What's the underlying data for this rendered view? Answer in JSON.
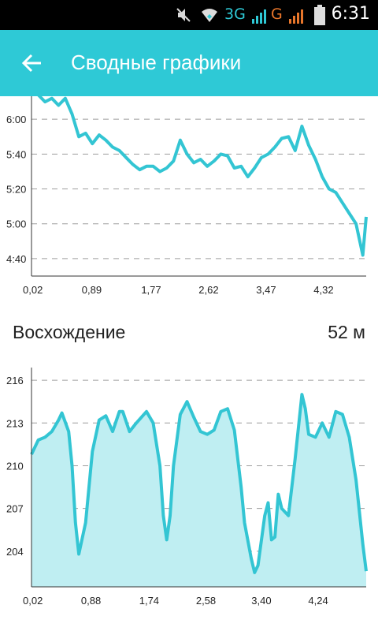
{
  "status_bar": {
    "time": "6:31",
    "network_1": "3G",
    "network_2": "G",
    "icons": [
      "mute-icon",
      "wifi-icon",
      "signal-icon",
      "battery-icon"
    ]
  },
  "app_bar": {
    "title": "Сводные графики",
    "back_icon": "arrow-left-icon"
  },
  "climb": {
    "label": "Восхождение",
    "value": "52 м"
  },
  "colors": {
    "accent": "#2ec9d6",
    "line": "#33c5d3",
    "fill": "#bfeef2"
  },
  "chart_data": [
    {
      "type": "line",
      "title": "",
      "xlabel": "",
      "ylabel": "",
      "x_ticks": [
        "0,02",
        "0,89",
        "1,77",
        "2,62",
        "3,47",
        "4,32"
      ],
      "y_ticks": [
        "6:00",
        "5:40",
        "5:20",
        "5:00",
        "4:40"
      ],
      "ylim_seconds": [
        270,
        380
      ],
      "xlim": [
        0.0,
        4.95
      ],
      "grid": "horizontal dashed",
      "series": [
        {
          "x": [
            0.0,
            0.1,
            0.2,
            0.3,
            0.4,
            0.5,
            0.6,
            0.7,
            0.8,
            0.9,
            1.0,
            1.1,
            1.2,
            1.3,
            1.4,
            1.5,
            1.6,
            1.7,
            1.8,
            1.9,
            2.0,
            2.1,
            2.2,
            2.3,
            2.4,
            2.5,
            2.6,
            2.7,
            2.8,
            2.9,
            3.0,
            3.1,
            3.2,
            3.3,
            3.4,
            3.5,
            3.6,
            3.7,
            3.8,
            3.9,
            4.0,
            4.1,
            4.2,
            4.3,
            4.4,
            4.5,
            4.6,
            4.7,
            4.8,
            4.9,
            4.95
          ],
          "y": [
            378,
            374,
            370,
            372,
            368,
            372,
            363,
            350,
            352,
            346,
            351,
            348,
            344,
            342,
            338,
            334,
            331,
            333,
            333,
            330,
            332,
            336,
            348,
            340,
            335,
            337,
            333,
            336,
            340,
            339,
            332,
            333,
            327,
            332,
            338,
            340,
            344,
            349,
            350,
            342,
            356,
            345,
            337,
            327,
            320,
            318,
            312,
            306,
            300,
            282,
            304
          ]
        }
      ]
    },
    {
      "type": "area",
      "title": "",
      "xlabel": "",
      "ylabel": "",
      "x_ticks": [
        "0,02",
        "0,88",
        "1,74",
        "2,58",
        "3,40",
        "4,24"
      ],
      "y_ticks": [
        "216",
        "213",
        "210",
        "207",
        "204"
      ],
      "ylim": [
        201.5,
        217
      ],
      "xlim": [
        0.0,
        4.95
      ],
      "grid": "horizontal dashed",
      "series": [
        {
          "x": [
            0.0,
            0.1,
            0.2,
            0.3,
            0.4,
            0.45,
            0.55,
            0.6,
            0.65,
            0.7,
            0.8,
            0.9,
            1.0,
            1.1,
            1.2,
            1.3,
            1.35,
            1.45,
            1.55,
            1.7,
            1.8,
            1.9,
            1.95,
            2.0,
            2.05,
            2.1,
            2.2,
            2.3,
            2.4,
            2.5,
            2.6,
            2.7,
            2.8,
            2.9,
            3.0,
            3.1,
            3.15,
            3.25,
            3.3,
            3.35,
            3.45,
            3.5,
            3.55,
            3.6,
            3.65,
            3.7,
            3.8,
            3.9,
            4.0,
            4.05,
            4.1,
            4.2,
            4.3,
            4.4,
            4.5,
            4.6,
            4.7,
            4.8,
            4.9,
            4.95
          ],
          "y": [
            210.8,
            211.8,
            212.0,
            212.4,
            213.2,
            213.7,
            212.4,
            210.0,
            206.0,
            203.8,
            206.0,
            211.0,
            213.2,
            213.5,
            212.4,
            213.8,
            213.8,
            212.4,
            213.0,
            213.8,
            213.0,
            210.0,
            206.5,
            204.8,
            206.5,
            210.0,
            213.6,
            214.5,
            213.4,
            212.4,
            212.2,
            212.5,
            213.8,
            214.0,
            212.5,
            208.5,
            206.0,
            203.5,
            202.5,
            203.0,
            206.5,
            207.4,
            204.8,
            205.0,
            208.0,
            207.0,
            206.5,
            210.5,
            215.0,
            214.0,
            212.2,
            212.0,
            213.0,
            212.0,
            213.8,
            213.6,
            212.0,
            209.0,
            204.5,
            202.6
          ]
        }
      ]
    }
  ]
}
